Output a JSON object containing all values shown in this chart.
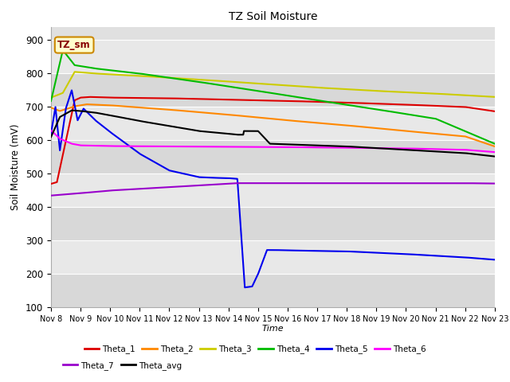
{
  "title": "TZ Soil Moisture",
  "xlabel": "Time",
  "ylabel": "Soil Moisture (mV)",
  "ylim": [
    100,
    940
  ],
  "yticks": [
    100,
    200,
    300,
    400,
    500,
    600,
    700,
    800,
    900
  ],
  "x_labels": [
    "Nov 8",
    "Nov 9",
    "Nov 10",
    "Nov 11",
    "Nov 12",
    "Nov 13",
    "Nov 14",
    "Nov 15",
    "Nov 16",
    "Nov 17",
    "Nov 18",
    "Nov 19",
    "Nov 20",
    "Nov 21",
    "Nov 22",
    "Nov 23"
  ],
  "annotation_text": "TZ_sm",
  "annotation_bg": "#ffffcc",
  "annotation_border": "#cc8800",
  "background_color": "#e0e0e0",
  "band_colors": [
    "#d8d8d8",
    "#e8e8e8"
  ],
  "series": {
    "Theta_1": {
      "color": "#dd0000",
      "points": [
        [
          0,
          470
        ],
        [
          0.2,
          475
        ],
        [
          0.8,
          720
        ],
        [
          1.0,
          728
        ],
        [
          1.3,
          730
        ],
        [
          2.0,
          728
        ],
        [
          4.0,
          726
        ],
        [
          6.0,
          722
        ],
        [
          8.0,
          718
        ],
        [
          10.0,
          713
        ],
        [
          12.0,
          707
        ],
        [
          14.0,
          700
        ],
        [
          15.0,
          687
        ]
      ]
    },
    "Theta_2": {
      "color": "#ff8800",
      "points": [
        [
          0,
          698
        ],
        [
          0.3,
          688
        ],
        [
          0.8,
          702
        ],
        [
          1.2,
          708
        ],
        [
          2.0,
          705
        ],
        [
          4.0,
          692
        ],
        [
          6.0,
          677
        ],
        [
          8.0,
          660
        ],
        [
          10.0,
          645
        ],
        [
          12.0,
          628
        ],
        [
          14.0,
          612
        ],
        [
          15.0,
          582
        ]
      ]
    },
    "Theta_3": {
      "color": "#cccc00",
      "points": [
        [
          0,
          728
        ],
        [
          0.4,
          742
        ],
        [
          0.8,
          805
        ],
        [
          1.5,
          800
        ],
        [
          3.0,
          793
        ],
        [
          5.0,
          782
        ],
        [
          7.0,
          770
        ],
        [
          9.0,
          758
        ],
        [
          11.0,
          748
        ],
        [
          13.0,
          740
        ],
        [
          15.0,
          730
        ]
      ]
    },
    "Theta_4": {
      "color": "#00bb00",
      "points": [
        [
          0,
          718
        ],
        [
          0.4,
          870
        ],
        [
          0.8,
          825
        ],
        [
          1.5,
          815
        ],
        [
          3.0,
          800
        ],
        [
          5.0,
          775
        ],
        [
          7.0,
          748
        ],
        [
          9.0,
          720
        ],
        [
          11.0,
          693
        ],
        [
          13.0,
          665
        ],
        [
          15.0,
          590
        ]
      ]
    },
    "Theta_5": {
      "color": "#0000ee",
      "points": [
        [
          0,
          620
        ],
        [
          0.15,
          700
        ],
        [
          0.3,
          570
        ],
        [
          0.5,
          695
        ],
        [
          0.7,
          750
        ],
        [
          0.9,
          660
        ],
        [
          1.1,
          695
        ],
        [
          1.5,
          660
        ],
        [
          2.0,
          625
        ],
        [
          3.0,
          560
        ],
        [
          4.0,
          510
        ],
        [
          5.0,
          490
        ],
        [
          5.5,
          488
        ],
        [
          6.0,
          487
        ],
        [
          6.3,
          485
        ],
        [
          6.55,
          160
        ],
        [
          6.8,
          163
        ],
        [
          7.0,
          200
        ],
        [
          7.3,
          272
        ],
        [
          7.6,
          272
        ],
        [
          8.0,
          271
        ],
        [
          10.0,
          268
        ],
        [
          12.0,
          260
        ],
        [
          14.0,
          250
        ],
        [
          15.0,
          243
        ]
      ]
    },
    "Theta_6": {
      "color": "#ff00ff",
      "points": [
        [
          0,
          630
        ],
        [
          0.3,
          605
        ],
        [
          0.7,
          590
        ],
        [
          1.0,
          585
        ],
        [
          2.0,
          583
        ],
        [
          4.0,
          582
        ],
        [
          6.0,
          581
        ],
        [
          8.0,
          580
        ],
        [
          10.0,
          578
        ],
        [
          12.0,
          576
        ],
        [
          14.0,
          572
        ],
        [
          15.0,
          565
        ]
      ]
    },
    "Theta_7": {
      "color": "#9900cc",
      "points": [
        [
          0,
          435
        ],
        [
          1.0,
          442
        ],
        [
          2.0,
          450
        ],
        [
          4.0,
          460
        ],
        [
          5.5,
          468
        ],
        [
          6.3,
          472
        ],
        [
          6.55,
          472
        ],
        [
          8.0,
          472
        ],
        [
          10.0,
          472
        ],
        [
          12.0,
          472
        ],
        [
          14.0,
          472
        ],
        [
          15.0,
          471
        ]
      ]
    },
    "Theta_avg": {
      "color": "#000000",
      "points": [
        [
          0,
          610
        ],
        [
          0.3,
          670
        ],
        [
          0.7,
          690
        ],
        [
          1.0,
          688
        ],
        [
          1.5,
          683
        ],
        [
          2.0,
          675
        ],
        [
          3.0,
          658
        ],
        [
          4.0,
          643
        ],
        [
          5.0,
          628
        ],
        [
          6.0,
          620
        ],
        [
          6.3,
          617
        ],
        [
          6.5,
          617
        ],
        [
          6.52,
          628
        ],
        [
          7.0,
          628
        ],
        [
          7.4,
          590
        ],
        [
          8.0,
          588
        ],
        [
          10.0,
          582
        ],
        [
          12.0,
          572
        ],
        [
          14.0,
          562
        ],
        [
          15.0,
          552
        ]
      ]
    }
  }
}
